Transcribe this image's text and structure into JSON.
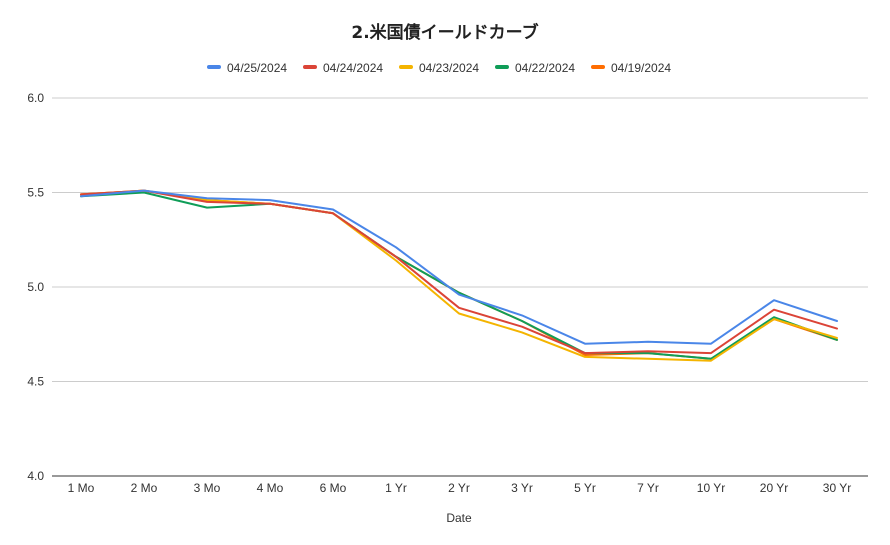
{
  "chart_data": {
    "type": "line",
    "title": "2.米国債イールドカーブ",
    "xlabel": "Date",
    "ylabel": "",
    "ylim": [
      4.0,
      6.0
    ],
    "yticks": [
      "4.0",
      "4.5",
      "5.0",
      "5.5",
      "6.0"
    ],
    "grid": true,
    "legend_position": "top",
    "categories": [
      "1 Mo",
      "2 Mo",
      "3 Mo",
      "4 Mo",
      "6 Mo",
      "1 Yr",
      "2 Yr",
      "3 Yr",
      "5 Yr",
      "7 Yr",
      "10 Yr",
      "20 Yr",
      "30 Yr"
    ],
    "series": [
      {
        "name": "04/25/2024",
        "color": "#4a86e8",
        "values": [
          5.48,
          5.51,
          5.47,
          5.46,
          5.41,
          5.21,
          4.96,
          4.85,
          4.7,
          4.71,
          4.7,
          4.93,
          4.82
        ]
      },
      {
        "name": "04/24/2024",
        "color": "#db4437",
        "values": [
          5.49,
          5.51,
          5.45,
          5.44,
          5.39,
          5.16,
          4.89,
          4.79,
          4.65,
          4.66,
          4.65,
          4.88,
          4.78
        ]
      },
      {
        "name": "04/23/2024",
        "color": "#f4b400",
        "values": [
          5.49,
          5.51,
          5.46,
          5.44,
          5.39,
          5.14,
          4.86,
          4.76,
          4.63,
          4.62,
          4.61,
          4.83,
          4.73
        ]
      },
      {
        "name": "04/22/2024",
        "color": "#0f9d58",
        "values": [
          5.48,
          5.5,
          5.42,
          5.44,
          5.39,
          5.16,
          4.97,
          4.82,
          4.65,
          4.65,
          4.62,
          4.84,
          4.72
        ]
      },
      {
        "name": "04/19/2024",
        "color": "#ff6d01",
        "values": [
          5.49,
          5.51,
          5.46,
          5.44,
          5.39,
          5.16,
          4.97,
          4.82,
          4.64,
          4.65,
          4.62,
          4.83,
          4.72
        ]
      }
    ]
  }
}
